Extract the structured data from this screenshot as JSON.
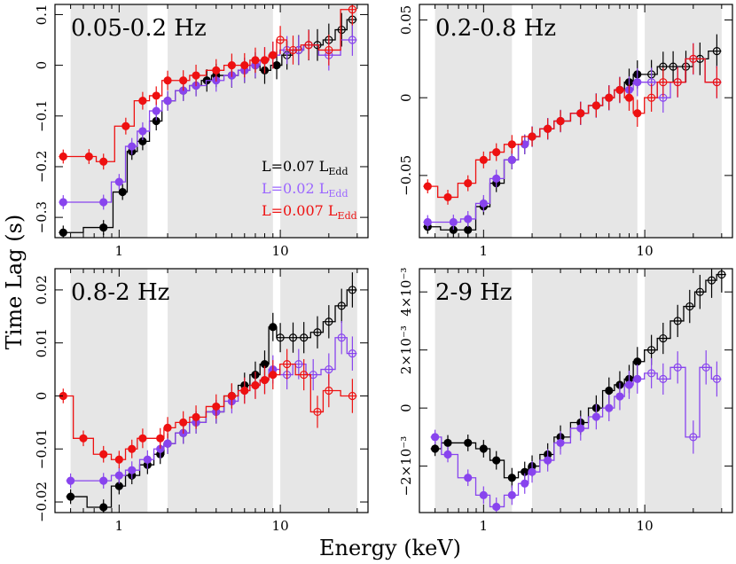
{
  "figure": {
    "ylabel": "Time Lag (s)",
    "xlabel": "Energy (keV)",
    "colors": {
      "black": "#000000",
      "purple": "#8844ee",
      "red": "#ee1111",
      "band": "#e6e6e6"
    }
  },
  "legend": [
    {
      "main": "L=0.07 L",
      "sub": "Edd",
      "color": "#000000"
    },
    {
      "main": "L=0.02 L",
      "sub": "Edd",
      "color": "#9b66ff"
    },
    {
      "main": "L=0.007 L",
      "sub": "Edd",
      "color": "#ee1111"
    }
  ],
  "chart_data": [
    {
      "type": "scatter",
      "title": "0.05-0.2 Hz",
      "xscale": "log",
      "xlim": [
        0.4,
        35
      ],
      "ylim": [
        -0.34,
        0.12
      ],
      "x_tick_labels": [
        "1",
        "10"
      ],
      "x_ticks": [
        1,
        10
      ],
      "y_ticks": [
        0.1,
        0,
        -0.1,
        -0.2,
        -0.3
      ],
      "y_tick_labels": [
        "0.1",
        "0",
        "−0.1",
        "−0.2",
        "−0.3"
      ],
      "shaded_energy_bands": [
        [
          0.5,
          1.5
        ],
        [
          2,
          9
        ],
        [
          10,
          30
        ]
      ],
      "series": [
        {
          "name": "L=0.07 LEdd",
          "color": "#000000",
          "x": [
            0.45,
            0.8,
            1.05,
            1.2,
            1.4,
            1.7,
            2.0,
            2.5,
            3.0,
            3.5,
            4.0,
            5.0,
            6.0,
            7.0,
            8.0,
            9.5,
            11,
            13,
            15,
            17,
            20,
            24,
            28
          ],
          "y": [
            -0.33,
            -0.32,
            -0.25,
            -0.17,
            -0.15,
            -0.11,
            -0.07,
            -0.05,
            -0.04,
            -0.03,
            -0.02,
            -0.02,
            -0.01,
            0.0,
            -0.01,
            0.0,
            0.02,
            0.03,
            0.04,
            0.04,
            0.05,
            0.07,
            0.09
          ]
        },
        {
          "name": "L=0.02 LEdd",
          "color": "#8844ee",
          "x": [
            0.45,
            0.8,
            1.0,
            1.2,
            1.4,
            1.7,
            2.0,
            2.5,
            3.0,
            4.0,
            5.0,
            6.0,
            7.0,
            8.0,
            9.0,
            11,
            13,
            15,
            20,
            28
          ],
          "y": [
            -0.27,
            -0.27,
            -0.23,
            -0.16,
            -0.13,
            -0.09,
            -0.07,
            -0.05,
            -0.04,
            -0.03,
            -0.02,
            -0.01,
            0.0,
            0.01,
            0.02,
            0.03,
            0.03,
            0.04,
            0.02,
            0.05
          ]
        },
        {
          "name": "L=0.007 LEdd",
          "color": "#ee1111",
          "x": [
            0.45,
            0.65,
            0.8,
            1.1,
            1.4,
            1.7,
            2.0,
            2.5,
            3.0,
            4.0,
            5.0,
            6.0,
            7.0,
            8.0,
            9.0,
            10,
            12,
            15,
            20,
            28
          ],
          "y": [
            -0.18,
            -0.18,
            -0.19,
            -0.12,
            -0.07,
            -0.06,
            -0.03,
            -0.03,
            -0.02,
            -0.01,
            0.0,
            0.0,
            0.01,
            0.01,
            0.02,
            0.05,
            0.03,
            0.04,
            0.03,
            0.11
          ]
        }
      ]
    },
    {
      "type": "scatter",
      "title": "0.2-0.8 Hz",
      "xscale": "log",
      "xlim": [
        0.4,
        35
      ],
      "ylim": [
        -0.09,
        0.06
      ],
      "x_tick_labels": [
        "1",
        "10"
      ],
      "x_ticks": [
        1,
        10
      ],
      "y_ticks": [
        0.05,
        0,
        -0.05
      ],
      "y_tick_labels": [
        "0.05",
        "0",
        "−0.05"
      ],
      "shaded_energy_bands": [
        [
          0.5,
          1.5
        ],
        [
          2,
          9
        ],
        [
          10,
          30
        ]
      ],
      "series": [
        {
          "name": "L=0.07 LEdd",
          "color": "#000000",
          "x": [
            0.45,
            0.65,
            0.8,
            1.0,
            1.2,
            1.5,
            1.8,
            2.0,
            2.5,
            3.0,
            4.0,
            5.0,
            6.0,
            7.0,
            8.0,
            9.0,
            11,
            13,
            15,
            18,
            22,
            28
          ],
          "y": [
            -0.083,
            -0.085,
            -0.085,
            -0.07,
            -0.055,
            -0.04,
            -0.03,
            -0.025,
            -0.02,
            -0.015,
            -0.01,
            -0.005,
            0.0,
            0.005,
            0.01,
            0.015,
            0.015,
            0.02,
            0.02,
            0.02,
            0.025,
            0.03
          ]
        },
        {
          "name": "L=0.02 LEdd",
          "color": "#8844ee",
          "x": [
            0.45,
            0.65,
            0.8,
            1.0,
            1.2,
            1.5,
            1.8,
            2.0,
            2.5,
            3.0,
            4.0,
            5.0,
            6.0,
            7.0,
            8.0,
            9.0,
            11,
            13,
            16,
            20,
            28
          ],
          "y": [
            -0.08,
            -0.08,
            -0.078,
            -0.068,
            -0.052,
            -0.04,
            -0.03,
            -0.025,
            -0.02,
            -0.015,
            -0.01,
            -0.005,
            0.0,
            0.005,
            0.005,
            0.01,
            0.01,
            0.0,
            0.01,
            0.025,
            0.01
          ]
        },
        {
          "name": "L=0.007 LEdd",
          "color": "#ee1111",
          "x": [
            0.45,
            0.6,
            0.8,
            1.0,
            1.2,
            1.5,
            2.0,
            2.5,
            3.0,
            4.0,
            5.0,
            6.0,
            7.0,
            8.0,
            9.0,
            11,
            13,
            16,
            20,
            28
          ],
          "y": [
            -0.057,
            -0.064,
            -0.055,
            -0.04,
            -0.035,
            -0.03,
            -0.025,
            -0.02,
            -0.015,
            -0.01,
            -0.005,
            0.0,
            0.005,
            0.0,
            -0.01,
            0.0,
            0.01,
            0.01,
            0.025,
            0.01
          ]
        }
      ]
    },
    {
      "type": "scatter",
      "title": "0.8-2 Hz",
      "xscale": "log",
      "xlim": [
        0.4,
        35
      ],
      "ylim": [
        -0.022,
        0.024
      ],
      "x_tick_labels": [
        "1",
        "10"
      ],
      "x_ticks": [
        1,
        10
      ],
      "y_ticks": [
        0.02,
        0.01,
        0,
        -0.01,
        -0.02
      ],
      "y_tick_labels": [
        "0.02",
        "0.01",
        "0",
        "−0.01",
        "−0.02"
      ],
      "shaded_energy_bands": [
        [
          0.5,
          1.5
        ],
        [
          2,
          9
        ],
        [
          10,
          30
        ]
      ],
      "series": [
        {
          "name": "L=0.07 LEdd",
          "color": "#000000",
          "x": [
            0.5,
            0.8,
            1.0,
            1.2,
            1.5,
            1.8,
            2.0,
            2.5,
            3.0,
            4.0,
            5.0,
            6.0,
            7.0,
            8.0,
            9.0,
            10,
            12,
            14,
            17,
            20,
            24,
            28
          ],
          "y": [
            -0.019,
            -0.021,
            -0.017,
            -0.015,
            -0.013,
            -0.011,
            -0.009,
            -0.007,
            -0.005,
            -0.003,
            0.0,
            0.002,
            0.004,
            0.006,
            0.013,
            0.011,
            0.011,
            0.011,
            0.012,
            0.014,
            0.017,
            0.02
          ]
        },
        {
          "name": "L=0.02 LEdd",
          "color": "#8844ee",
          "x": [
            0.5,
            0.8,
            1.0,
            1.2,
            1.5,
            1.8,
            2.0,
            2.5,
            3.0,
            4.0,
            5.0,
            6.0,
            7.0,
            8.0,
            9.0,
            11,
            13,
            16,
            20,
            24,
            28
          ],
          "y": [
            -0.016,
            -0.016,
            -0.015,
            -0.014,
            -0.012,
            -0.01,
            -0.009,
            -0.007,
            -0.005,
            -0.003,
            -0.001,
            0.001,
            0.002,
            0.003,
            0.005,
            0.004,
            0.006,
            0.004,
            0.005,
            0.011,
            0.008
          ]
        },
        {
          "name": "L=0.007 LEdd",
          "color": "#ee1111",
          "x": [
            0.45,
            0.6,
            0.8,
            1.0,
            1.2,
            1.4,
            1.8,
            2.0,
            2.5,
            3.0,
            4.0,
            5.0,
            6.0,
            7.0,
            8.0,
            9.0,
            11,
            14,
            17,
            20,
            28
          ],
          "y": [
            0.0,
            -0.008,
            -0.011,
            -0.012,
            -0.01,
            -0.008,
            -0.008,
            -0.006,
            -0.005,
            -0.004,
            -0.002,
            0.0,
            0.001,
            0.002,
            0.003,
            0.004,
            0.006,
            0.004,
            -0.003,
            0.001,
            0.0
          ]
        }
      ]
    },
    {
      "type": "scatter",
      "title": "2-9 Hz",
      "xscale": "log",
      "xlim": [
        0.4,
        35
      ],
      "ylim": [
        -0.0036,
        0.0048
      ],
      "x_tick_labels": [
        "1",
        "10"
      ],
      "x_ticks": [
        1,
        10
      ],
      "y_ticks": [
        0.004,
        0.002,
        0,
        -0.002
      ],
      "y_tick_labels": [
        "4×10⁻³",
        "2×10⁻³",
        "0",
        "−2×10⁻³"
      ],
      "shaded_energy_bands": [
        [
          0.5,
          1.5
        ],
        [
          2,
          9
        ],
        [
          10,
          30
        ]
      ],
      "series": [
        {
          "name": "L=0.07 LEdd",
          "color": "#000000",
          "x": [
            0.5,
            0.6,
            0.8,
            1.0,
            1.2,
            1.5,
            1.8,
            2.0,
            2.5,
            3.0,
            4.0,
            5.0,
            6.0,
            7.0,
            8.0,
            9.0,
            11,
            13,
            16,
            19,
            22,
            26,
            30
          ],
          "y": [
            -0.0014,
            -0.0012,
            -0.0012,
            -0.0014,
            -0.0018,
            -0.0024,
            -0.0022,
            -0.002,
            -0.0016,
            -0.001,
            -0.0005,
            0.0,
            0.0006,
            0.0008,
            0.001,
            0.0016,
            0.002,
            0.0024,
            0.003,
            0.0035,
            0.004,
            0.0044,
            0.0046
          ]
        },
        {
          "name": "L=0.02 LEdd",
          "color": "#8844ee",
          "x": [
            0.5,
            0.6,
            0.8,
            1.0,
            1.2,
            1.5,
            1.8,
            2.0,
            2.5,
            3.0,
            4.0,
            5.0,
            6.0,
            7.0,
            8.0,
            9.0,
            11,
            13,
            16,
            20,
            24,
            28
          ],
          "y": [
            -0.001,
            -0.0016,
            -0.0024,
            -0.003,
            -0.0034,
            -0.003,
            -0.0026,
            -0.0022,
            -0.0018,
            -0.0012,
            -0.0007,
            -0.0003,
            0.0,
            0.0004,
            0.0008,
            0.001,
            0.0012,
            0.001,
            0.0014,
            -0.001,
            0.0014,
            0.001
          ]
        }
      ]
    }
  ]
}
